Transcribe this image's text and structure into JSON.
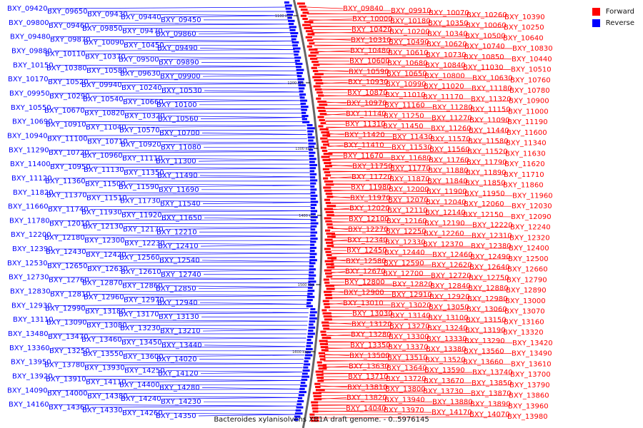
{
  "caption": "Bacteroides xylanisolvens XB1A draft genome. - 0..5976145",
  "legend": [
    {
      "label": "Forward",
      "color": "#ff0000"
    },
    {
      "label": "Reverse",
      "color": "#0000ff"
    }
  ],
  "colors": {
    "forward": "#ff0000",
    "reverse": "#0000ff",
    "backbone": "#666666"
  },
  "ticks": [
    "1100 kbp",
    "1200 kbp",
    "1300 kbp",
    "1400 kbp",
    "1500 kbp",
    "1600 kbp"
  ],
  "left_labels": [
    "BXY_09420",
    "BXY_09650",
    "BXY_09430",
    "BXY_09440",
    "BXY_09450",
    "BXY_09800",
    "BXY_09460",
    "BXY_09850",
    "BXY_09470",
    "BXY_09860",
    "BXY_09480",
    "BXY_09870",
    "BXY_10090",
    "BXY_10450",
    "BXY_09490",
    "BXY_09880",
    "BXY_10110",
    "BXY_10370",
    "BXY_09500",
    "BXY_09890",
    "BXY_10150",
    "BXY_10380",
    "BXY_10580",
    "BXY_09630",
    "BXY_09900",
    "BXY_10170",
    "BXY_10520",
    "BXY_09940",
    "BXY_10240",
    "BXY_10530",
    "BXY_09950",
    "BXY_10290",
    "BXY_10540",
    "BXY_10660",
    "BXY_10100",
    "BXY_10550",
    "BXY_10670",
    "BXY_10820",
    "BXY_10320",
    "BXY_10560",
    "BXY_10690",
    "BXY_10910",
    "BXY_11040",
    "BXY_10570",
    "BXY_10700",
    "BXY_10940",
    "BXY_11100",
    "BXY_10710",
    "BXY_10920",
    "BXY_11080",
    "BXY_11290",
    "BXY_10720",
    "BXY_10960",
    "BXY_11110",
    "BXY_11300",
    "BXY_11400",
    "BXY_10950",
    "BXY_11130",
    "BXY_11350",
    "BXY_11490",
    "BXY_11120",
    "BXY_11360",
    "BXY_11500",
    "BXY_11590",
    "BXY_11690",
    "BXY_11820",
    "BXY_11370",
    "BXY_11510",
    "BXY_11730",
    "BXY_11540",
    "BXY_11660",
    "BXY_11740",
    "BXY_11930",
    "BXY_11920",
    "BXY_11650",
    "BXY_11780",
    "BXY_12010",
    "BXY_12130",
    "BXY_12170",
    "BXY_12210",
    "BXY_12200",
    "BXY_12180",
    "BXY_12300",
    "BXY_12230",
    "BXY_12410",
    "BXY_12390",
    "BXY_12430",
    "BXY_12420",
    "BXY_12560",
    "BXY_12540",
    "BXY_12530",
    "BXY_12650",
    "BXY_12630",
    "BXY_12610",
    "BXY_12740",
    "BXY_12730",
    "BXY_12760",
    "BXY_12870",
    "BXY_12860",
    "BXY_12850",
    "BXY_12830",
    "BXY_12810",
    "BXY_12960",
    "BXY_12970",
    "BXY_12940",
    "BXY_12930",
    "BXY_12990",
    "BXY_13180",
    "BXY_13170",
    "BXY_13130",
    "BXY_13110",
    "BXY_13090",
    "BXY_13080",
    "BXY_13230",
    "BXY_13210",
    "BXY_13480",
    "BXY_13470",
    "BXY_13460",
    "BXY_13450",
    "BXY_13440",
    "BXY_13360",
    "BXY_13250",
    "BXY_13550",
    "BXY_13600",
    "BXY_14020",
    "BXY_13950",
    "BXY_13780",
    "BXY_13930",
    "BXY_14250",
    "BXY_14120",
    "BXY_13920",
    "BXY_13910",
    "BXY_14110",
    "BXY_14400",
    "BXY_14280",
    "BXY_14090",
    "BXY_14000",
    "BXY_14380",
    "BXY_14240",
    "BXY_14230",
    "BXY_14160",
    "BXY_14360",
    "BXY_14330",
    "BXY_14260",
    "BXY_14350"
  ],
  "right_labels": [
    "BXY_09840",
    "BXY_09910",
    "BXY_10070",
    "BXY_10260",
    "BXY_10390",
    "BXY_10000",
    "BXY_10180",
    "BXY_10350",
    "BXY_10060",
    "BXY_10250",
    "BXY_10420",
    "BXY_10200",
    "BXY_10340",
    "BXY_10500",
    "BXY_10640",
    "BXY_10310",
    "BXY_10490",
    "BXY_10620",
    "BXY_10740",
    "BXY_10830",
    "BXY_10480",
    "BXY_10610",
    "BXY_10730",
    "BXY_10850",
    "BXY_10440",
    "BXY_10600",
    "BXY_10680",
    "BXY_10840",
    "BXY_11030",
    "BXY_10510",
    "BXY_10590",
    "BXY_10650",
    "BXY_10800",
    "BXY_10630",
    "BXY_10760",
    "BXY_10930",
    "BXY_10990",
    "BXY_11020",
    "BXY_11180",
    "BXY_10780",
    "BXY_10870",
    "BXY_11010",
    "BXY_11170",
    "BXY_11320",
    "BXY_10900",
    "BXY_10970",
    "BXY_11160",
    "BXY_11280",
    "BXY_11150",
    "BXY_11000",
    "BXY_11140",
    "BXY_11250",
    "BXY_11270",
    "BXY_11090",
    "BXY_11190",
    "BXY_11310",
    "BXY_11450",
    "BXY_11260",
    "BXY_11440",
    "BXY_11600",
    "BXY_11420",
    "BXY_11430",
    "BXY_11570",
    "BXY_11580",
    "BXY_11340",
    "BXY_11410",
    "BXY_11530",
    "BXY_11560",
    "BXY_11520",
    "BXY_11630",
    "BXY_11670",
    "BXY_11680",
    "BXY_11760",
    "BXY_11790",
    "BXY_11620",
    "BXY_11750",
    "BXY_11770",
    "BXY_11880",
    "BXY_11890",
    "BXY_11710",
    "BXY_11720",
    "BXY_11870",
    "BXY_11840",
    "BXY_11850",
    "BXY_11860",
    "BXY_11980",
    "BXY_12000",
    "BXY_11900",
    "BXY_11950",
    "BXY_11960",
    "BXY_11970",
    "BXY_12070",
    "BXY_12040",
    "BXY_12060",
    "BXY_12030",
    "BXY_12020",
    "BXY_12110",
    "BXY_12140",
    "BXY_12150",
    "BXY_12090",
    "BXY_12100",
    "BXY_12160",
    "BXY_12190",
    "BXY_12220",
    "BXY_12240",
    "BXY_12270",
    "BXY_12250",
    "BXY_12260",
    "BXY_12310",
    "BXY_12320",
    "BXY_12340",
    "BXY_12330",
    "BXY_12370",
    "BXY_12380",
    "BXY_12400",
    "BXY_12450",
    "BXY_12440",
    "BXY_12460",
    "BXY_12490",
    "BXY_12500",
    "BXY_12580",
    "BXY_12590",
    "BXY_12620",
    "BXY_12640",
    "BXY_12660",
    "BXY_12670",
    "BXY_12700",
    "BXY_12720",
    "BXY_12750",
    "BXY_12790",
    "BXY_12800",
    "BXY_12820",
    "BXY_12840",
    "BXY_12880",
    "BXY_12890",
    "BXY_12900",
    "BXY_12910",
    "BXY_12920",
    "BXY_12980",
    "BXY_13000",
    "BXY_13010",
    "BXY_13020",
    "BXY_13050",
    "BXY_13060",
    "BXY_13070",
    "BXY_13030",
    "BXY_13140",
    "BXY_13100",
    "BXY_13150",
    "BXY_13160",
    "BXY_13120",
    "BXY_13270",
    "BXY_13240",
    "BXY_13190",
    "BXY_13320",
    "BXY_13280",
    "BXY_13300",
    "BXY_13330",
    "BXY_13290",
    "BXY_13420",
    "BXY_13350",
    "BXY_13370",
    "BXY_13380",
    "BXY_13560",
    "BXY_13490",
    "BXY_13500",
    "BXY_13510",
    "BXY_13520",
    "BXY_13660",
    "BXY_13610",
    "BXY_13630",
    "BXY_13640",
    "BXY_13590",
    "BXY_13740",
    "BXY_13700",
    "BXY_13710",
    "BXY_13720",
    "BXY_13670",
    "BXY_13850",
    "BXY_13790",
    "BXY_13810",
    "BXY_13800",
    "BXY_13730",
    "BXY_13870",
    "BXY_13860",
    "BXY_13820",
    "BXY_13940",
    "BXY_13880",
    "BXY_13890",
    "BXY_13960",
    "BXY_14040",
    "BXY_13970",
    "BXY_14170",
    "BXY_14070",
    "BXY_13980"
  ]
}
